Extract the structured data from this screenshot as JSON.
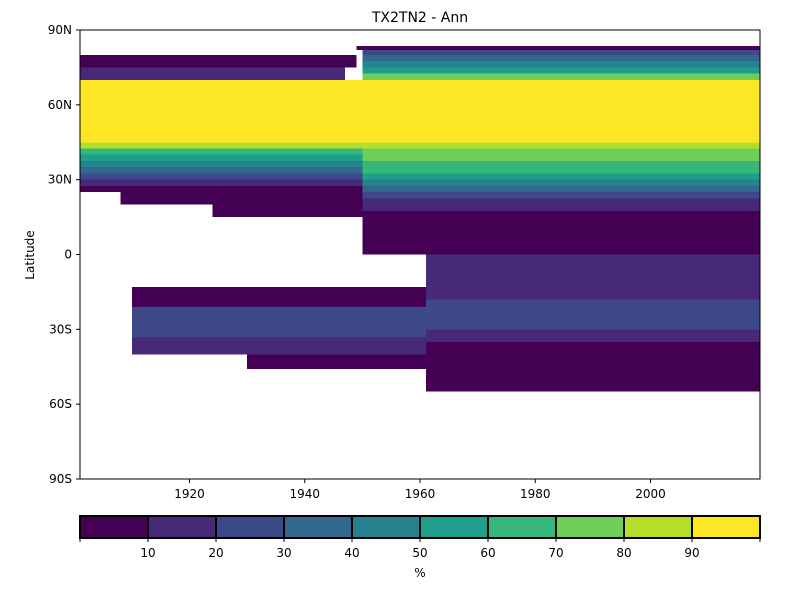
{
  "chart_data": {
    "type": "heatmap",
    "title": "TX2TN2 - Ann",
    "xlabel": "",
    "ylabel": "Latitude",
    "xlim": [
      1901,
      2019
    ],
    "ylim": [
      -90,
      90
    ],
    "x_ticks": [
      1920,
      1940,
      1960,
      1980,
      2000
    ],
    "x_tick_labels": [
      "1920",
      "1940",
      "1960",
      "1980",
      "2000"
    ],
    "y_ticks": [
      90,
      60,
      30,
      0,
      -30,
      -60,
      -90
    ],
    "y_tick_labels": [
      "90N",
      "60N",
      "30N",
      "0",
      "30S",
      "60S",
      "90S"
    ],
    "grid": false,
    "colorbar": {
      "label": "%",
      "bounds": [
        0,
        10,
        20,
        30,
        40,
        50,
        60,
        70,
        80,
        90,
        100
      ],
      "tick_values": [
        10,
        20,
        30,
        40,
        50,
        60,
        70,
        80,
        90
      ],
      "tick_labels": [
        "10",
        "20",
        "30",
        "40",
        "50",
        "60",
        "70",
        "80",
        "90"
      ],
      "colors": [
        "#440154",
        "#482878",
        "#3e4989",
        "#31688e",
        "#26828e",
        "#1f9e89",
        "#35b779",
        "#6ece58",
        "#b5de2b",
        "#fde725"
      ],
      "placement": "bottom"
    },
    "cells": [
      {
        "x0": 1901,
        "x1": 1949,
        "y0": 75,
        "y1": 80,
        "value": 5
      },
      {
        "x0": 1949,
        "x1": 2019,
        "y0": 82,
        "y1": 83.5,
        "value": 5
      },
      {
        "x0": 1950,
        "x1": 2019,
        "y0": 80,
        "y1": 82,
        "value": 25
      },
      {
        "x0": 1950,
        "x1": 2019,
        "y0": 77.5,
        "y1": 80,
        "value": 35
      },
      {
        "x0": 1950,
        "x1": 2019,
        "y0": 75,
        "y1": 77.5,
        "value": 45
      },
      {
        "x0": 1901,
        "x1": 1947,
        "y0": 70,
        "y1": 75,
        "value": 15
      },
      {
        "x0": 1950,
        "x1": 2019,
        "y0": 72.5,
        "y1": 75,
        "value": 55
      },
      {
        "x0": 1950,
        "x1": 2019,
        "y0": 70,
        "y1": 72.5,
        "value": 75
      },
      {
        "x0": 1901,
        "x1": 2019,
        "y0": 45,
        "y1": 70,
        "value": 95
      },
      {
        "x0": 1901,
        "x1": 1950,
        "y0": 42.5,
        "y1": 45,
        "value": 85
      },
      {
        "x0": 1901,
        "x1": 1950,
        "y0": 40,
        "y1": 42.5,
        "value": 65
      },
      {
        "x0": 1901,
        "x1": 1950,
        "y0": 37.5,
        "y1": 40,
        "value": 55
      },
      {
        "x0": 1901,
        "x1": 1950,
        "y0": 35,
        "y1": 37.5,
        "value": 45
      },
      {
        "x0": 1901,
        "x1": 1950,
        "y0": 32.5,
        "y1": 35,
        "value": 35
      },
      {
        "x0": 1901,
        "x1": 1950,
        "y0": 30,
        "y1": 32.5,
        "value": 25
      },
      {
        "x0": 1901,
        "x1": 1950,
        "y0": 27.5,
        "y1": 30,
        "value": 15
      },
      {
        "x0": 1901,
        "x1": 1950,
        "y0": 25,
        "y1": 27.5,
        "value": 5
      },
      {
        "x0": 1908,
        "x1": 1950,
        "y0": 20,
        "y1": 25,
        "value": 5
      },
      {
        "x0": 1924,
        "x1": 1950,
        "y0": 15,
        "y1": 20,
        "value": 5
      },
      {
        "x0": 1950,
        "x1": 2019,
        "y0": 42.5,
        "y1": 45,
        "value": 85
      },
      {
        "x0": 1950,
        "x1": 2019,
        "y0": 37.5,
        "y1": 42.5,
        "value": 75
      },
      {
        "x0": 1950,
        "x1": 2019,
        "y0": 32.5,
        "y1": 37.5,
        "value": 65
      },
      {
        "x0": 1950,
        "x1": 2019,
        "y0": 30,
        "y1": 32.5,
        "value": 55
      },
      {
        "x0": 1950,
        "x1": 2019,
        "y0": 27.5,
        "y1": 30,
        "value": 45
      },
      {
        "x0": 1950,
        "x1": 2019,
        "y0": 25,
        "y1": 27.5,
        "value": 35
      },
      {
        "x0": 1950,
        "x1": 2019,
        "y0": 22.5,
        "y1": 25,
        "value": 25
      },
      {
        "x0": 1950,
        "x1": 2019,
        "y0": 17.5,
        "y1": 22.5,
        "value": 15
      },
      {
        "x0": 1950,
        "x1": 2019,
        "y0": 12.5,
        "y1": 17.5,
        "value": 5
      },
      {
        "x0": 1950,
        "x1": 2019,
        "y0": 0,
        "y1": 12.5,
        "value": 5
      },
      {
        "x0": 1961,
        "x1": 2019,
        "y0": -10,
        "y1": 0,
        "value": 15
      },
      {
        "x0": 1910,
        "x1": 1961,
        "y0": -21,
        "y1": -13,
        "value": 5
      },
      {
        "x0": 1910,
        "x1": 1961,
        "y0": -33,
        "y1": -21,
        "value": 25
      },
      {
        "x0": 1910,
        "x1": 1961,
        "y0": -40,
        "y1": -33,
        "value": 15
      },
      {
        "x0": 1930,
        "x1": 1961,
        "y0": -46,
        "y1": -40,
        "value": 5
      },
      {
        "x0": 1961,
        "x1": 2019,
        "y0": -18,
        "y1": -10,
        "value": 15
      },
      {
        "x0": 1961,
        "x1": 2019,
        "y0": -30,
        "y1": -18,
        "value": 25
      },
      {
        "x0": 1961,
        "x1": 2019,
        "y0": -35,
        "y1": -30,
        "value": 15
      },
      {
        "x0": 1961,
        "x1": 2019,
        "y0": -55,
        "y1": -35,
        "value": 5
      }
    ]
  }
}
